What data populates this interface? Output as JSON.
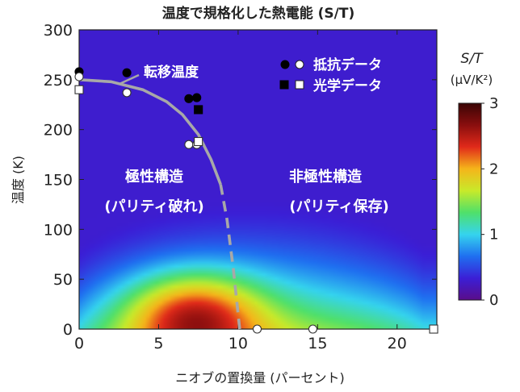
{
  "chart_data": {
    "type": "heatmap",
    "title": "温度で規格化した熱電能 (S/T)",
    "xlabel": "ニオブの置換量 (パーセント)",
    "ylabel": "温度 (K)",
    "xlim": [
      0,
      22.5
    ],
    "ylim": [
      0,
      300
    ],
    "xticks": [
      0,
      5,
      10,
      15,
      20
    ],
    "yticks": [
      0,
      50,
      100,
      150,
      200,
      250,
      300
    ],
    "colorbar": {
      "label_line1": "S/T",
      "label_line2": "(μV/K²)",
      "range": [
        0,
        3
      ],
      "ticks": [
        0,
        1,
        2,
        3
      ],
      "colors": [
        "#5a0d8a",
        "#3b1fd6",
        "#1f6ff0",
        "#35d4ee",
        "#4fe06a",
        "#c8ea2a",
        "#f5b51a",
        "#e12a1a",
        "#8a0e0e",
        "#3a0505"
      ]
    },
    "heat_field": {
      "peak_x": 7.2,
      "peak_y": 15,
      "peak_value": 2.7,
      "outer_extent_x": [
        0,
        22
      ],
      "outer_extent_y": [
        0,
        130
      ],
      "base_value": 0.3
    },
    "series": [
      {
        "name": "抵抗データ",
        "marker": "circle",
        "points": [
          {
            "x": 0,
            "y": 258,
            "fill": "black"
          },
          {
            "x": 0,
            "y": 253,
            "fill": "white"
          },
          {
            "x": 3,
            "y": 257,
            "fill": "black"
          },
          {
            "x": 3,
            "y": 237,
            "fill": "white"
          },
          {
            "x": 6.9,
            "y": 231,
            "fill": "black"
          },
          {
            "x": 7.4,
            "y": 232,
            "fill": "black"
          },
          {
            "x": 6.9,
            "y": 185,
            "fill": "white"
          },
          {
            "x": 7.4,
            "y": 185,
            "fill": "white"
          },
          {
            "x": 11.2,
            "y": 0,
            "fill": "white"
          },
          {
            "x": 14.7,
            "y": 0,
            "fill": "white"
          },
          {
            "x": 22.3,
            "y": 0,
            "fill": "white"
          }
        ]
      },
      {
        "name": "光学データ",
        "marker": "square",
        "points": [
          {
            "x": 0,
            "y": 240,
            "fill": "white"
          },
          {
            "x": 7.5,
            "y": 220,
            "fill": "black"
          },
          {
            "x": 7.5,
            "y": 188,
            "fill": "white"
          },
          {
            "x": 22.3,
            "y": 0,
            "fill": "white"
          }
        ]
      }
    ],
    "transition_curve": {
      "name": "転移温度",
      "solid": [
        [
          0,
          250
        ],
        [
          2,
          248
        ],
        [
          4,
          240
        ],
        [
          5.5,
          228
        ],
        [
          6.5,
          215
        ],
        [
          7.5,
          195
        ],
        [
          8.3,
          170
        ],
        [
          8.9,
          145
        ]
      ],
      "dashed": [
        [
          8.9,
          145
        ],
        [
          9.3,
          110
        ],
        [
          9.7,
          60
        ],
        [
          10.1,
          0
        ]
      ]
    },
    "annotations": {
      "transition_label": "転移温度",
      "legend_resistance": "抵抗データ",
      "legend_optical": "光学データ",
      "region_polar_line1": "極性構造",
      "region_polar_line2": "(パリティ破れ)",
      "region_nonpolar_line1": "非極性構造",
      "region_nonpolar_line2": "(パリティ保存)"
    }
  }
}
